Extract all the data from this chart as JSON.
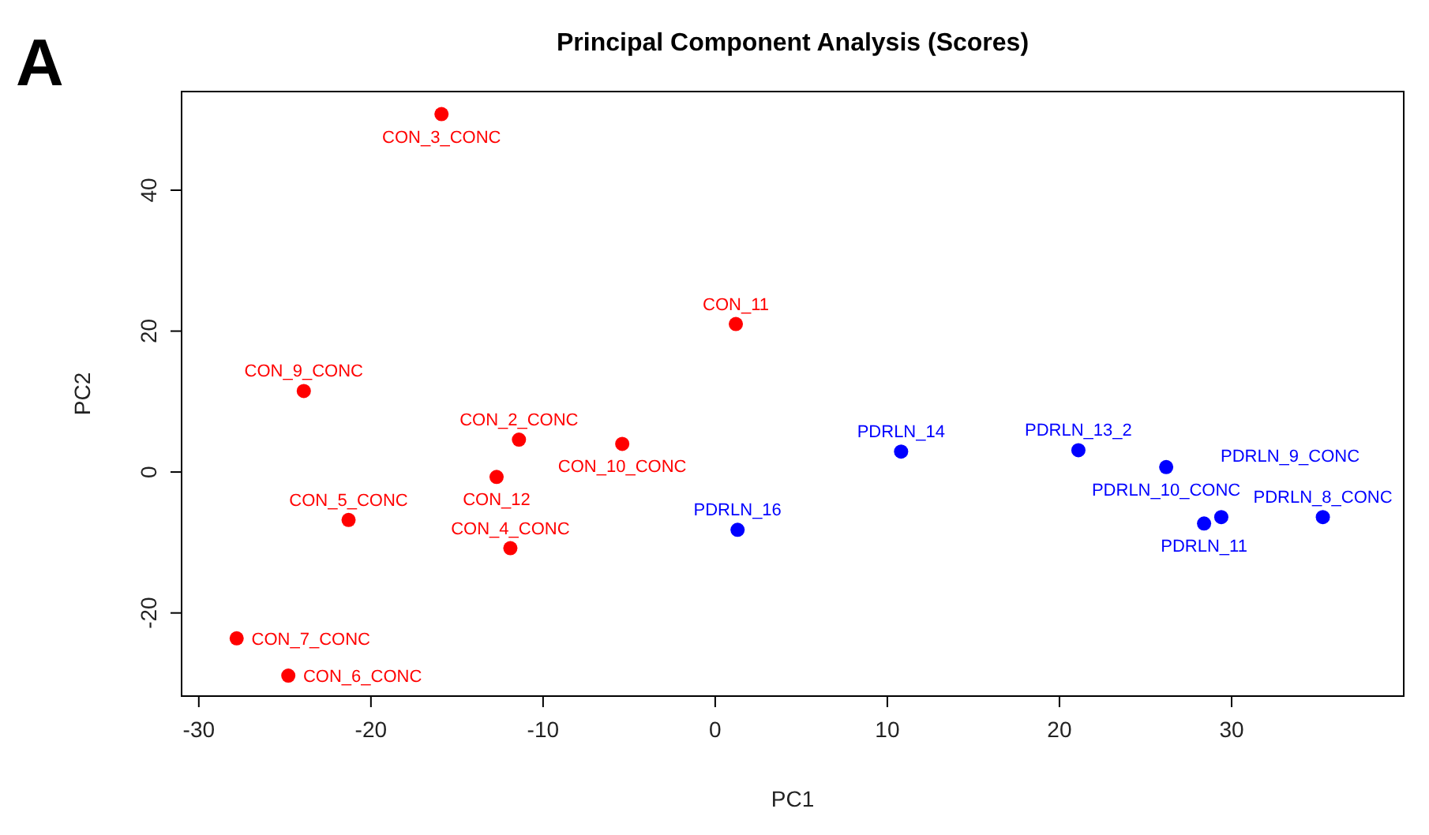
{
  "chart_data": {
    "type": "scatter",
    "title": "Principal Component Analysis (Scores)",
    "xlabel": "PC1",
    "ylabel": "PC2",
    "xlim": [
      -31,
      40
    ],
    "ylim": [
      -31.8,
      54
    ],
    "xticks": [
      -30,
      -20,
      -10,
      0,
      10,
      20,
      30
    ],
    "yticks": [
      -20,
      0,
      20,
      40
    ],
    "grid": false,
    "marker": "circle",
    "series": [
      {
        "color": "#ff0000",
        "x": [
          -15.9,
          1.2,
          -23.9,
          -11.4,
          -5.4,
          -12.7,
          -21.3,
          -11.9,
          -27.8,
          -24.8
        ],
        "values": [
          50.8,
          21.0,
          11.5,
          4.6,
          4.0,
          -0.7,
          -6.8,
          -10.8,
          -23.6,
          -28.9
        ]
      },
      {
        "color": "#0000ff",
        "x": [
          1.3,
          10.8,
          21.1,
          26.2,
          28.4,
          29.4,
          35.3
        ],
        "values": [
          -8.2,
          2.9,
          3.1,
          0.7,
          -7.3,
          -6.4,
          -6.4
        ]
      }
    ],
    "annotations": [
      "A",
      {
        "text": "CON_3_CONC",
        "x": -15.9,
        "y": 50.8
      },
      {
        "text": "CON_11",
        "x": 1.2,
        "y": 21.0
      },
      {
        "text": "CON_9_CONC",
        "x": -23.9,
        "y": 11.5
      },
      {
        "text": "CON_2_CONC",
        "x": -11.4,
        "y": 4.6
      },
      {
        "text": "CON_10_CONC",
        "x": -5.4,
        "y": 4.0
      },
      {
        "text": "CON_12",
        "x": -12.7,
        "y": -0.7
      },
      {
        "text": "CON_5_CONC",
        "x": -21.3,
        "y": -6.8
      },
      {
        "text": "CON_4_CONC",
        "x": -11.9,
        "y": -10.8
      },
      {
        "text": "CON_7_CONC",
        "x": -27.8,
        "y": -23.6
      },
      {
        "text": "CON_6_CONC",
        "x": -24.8,
        "y": -28.9
      },
      {
        "text": "PDRLN_16",
        "x": 1.3,
        "y": -8.2
      },
      {
        "text": "PDRLN_14",
        "x": 10.8,
        "y": 2.9
      },
      {
        "text": "PDRLN_13_2",
        "x": 21.1,
        "y": 3.1
      },
      {
        "text": "PDRLN_10_CONC",
        "x": 26.2,
        "y": 0.7
      },
      {
        "text": "PDRLN_11",
        "x": 28.4,
        "y": -7.3
      },
      {
        "text": "PDRLN_9_CONC",
        "x": 29.4,
        "y": -6.4
      },
      {
        "text": "PDRLN_8_CONC",
        "x": 35.3,
        "y": -6.4
      }
    ]
  }
}
